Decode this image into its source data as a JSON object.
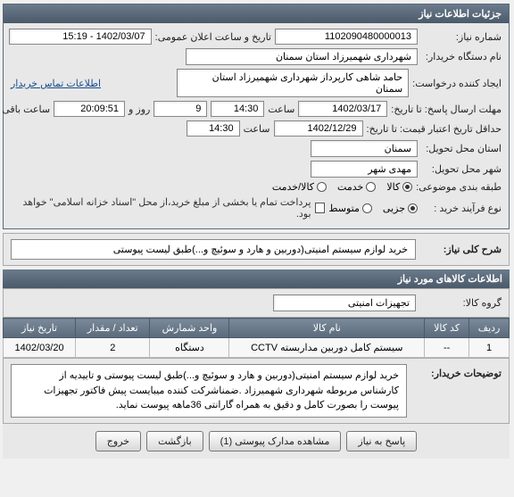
{
  "panel": {
    "title": "جزئیات اطلاعات نیاز"
  },
  "fields": {
    "need_number_label": "شماره نیاز:",
    "need_number": "1102090480000013",
    "announce_label": "تاریخ و ساعت اعلان عمومی:",
    "announce_value": "1402/03/07 - 15:19",
    "buyer_org_label": "نام دستگاه خریدار:",
    "buyer_org": "شهرداری شهمیرزاد استان سمنان",
    "requester_label": "ایجاد کننده درخواست:",
    "requester": "حامد شاهی کارپرداز شهرداری شهمیرزاد استان سمنان",
    "contact_link": "اطلاعات تماس خریدار",
    "deadline_label": "مهلت ارسال پاسخ: تا تاریخ:",
    "deadline_date": "1402/03/17",
    "time_label": "ساعت",
    "deadline_time": "14:30",
    "days_label": "روز و",
    "days_value": "9",
    "remain_time": "20:09:51",
    "remain_label": "ساعت باقی مانده",
    "valid_until_label": "حداقل تاریخ اعتبار قیمت: تا تاریخ:",
    "valid_date": "1402/12/29",
    "valid_time": "14:30",
    "province_label": "استان محل تحویل:",
    "province": "سمنان",
    "city_label": "شهر محل تحویل:",
    "city": "مهدی شهر",
    "category_label": "طبقه بندی موضوعی:",
    "cat_goods": "کالا",
    "cat_service": "خدمت",
    "cat_goods_service": "کالا/خدمت",
    "process_label": "نوع فرآیند خرید :",
    "proc_partial": "جزیی",
    "proc_medium": "متوسط",
    "pay_note_checkbox_label": "",
    "pay_note": "پرداخت تمام یا بخشی از مبلغ خرید،از محل \"اسناد خزانه اسلامی\" خواهد بود."
  },
  "general_desc": {
    "label": "شرح کلی نیاز:",
    "text": "خرید لوازم سیستم امنیتی(دوربین و هارد و سوئیچ و...)طبق لیست پیوستی"
  },
  "goods_section": {
    "title": "اطلاعات کالاهای مورد نیاز",
    "group_label": "گروه کالا:",
    "group_value": "تجهیزات امنیتی"
  },
  "table": {
    "headers": {
      "row": "ردیف",
      "code": "کد کالا",
      "name": "نام کالا",
      "unit": "واحد شمارش",
      "qty": "تعداد / مقدار",
      "date": "تاریخ نیاز"
    },
    "rows": [
      {
        "row": "1",
        "code": "--",
        "name": "سیستم کامل دوربین مداربسته CCTV",
        "unit": "دستگاه",
        "qty": "2",
        "date": "1402/03/20"
      }
    ]
  },
  "buyer_notes": {
    "label": "توضیحات خریدار:",
    "text": "خرید لوازم سیستم امنیتی(دوربین و هارد و سوئیچ و...)طبق لیست پیوستی و تاییدیه از کارشناس مربوطه شهرداری شهمیرزاد .ضمناشرکت کننده میبایست پیش فاکتور تجهیزات پیوست را بصورت کامل و دقیق به همراه گارانتی 36ماهه پیوست نماید."
  },
  "buttons": {
    "respond": "پاسخ به نیاز",
    "view_attach": "مشاهده مدارک پیوستی (1)",
    "back": "بازگشت",
    "exit": "خروج"
  },
  "colors": {
    "header_bg_top": "#6b7b8b",
    "header_bg_bottom": "#4a5a6a",
    "panel_bg": "#e8e8e8",
    "field_bg": "#ffffff",
    "border": "#888888"
  }
}
